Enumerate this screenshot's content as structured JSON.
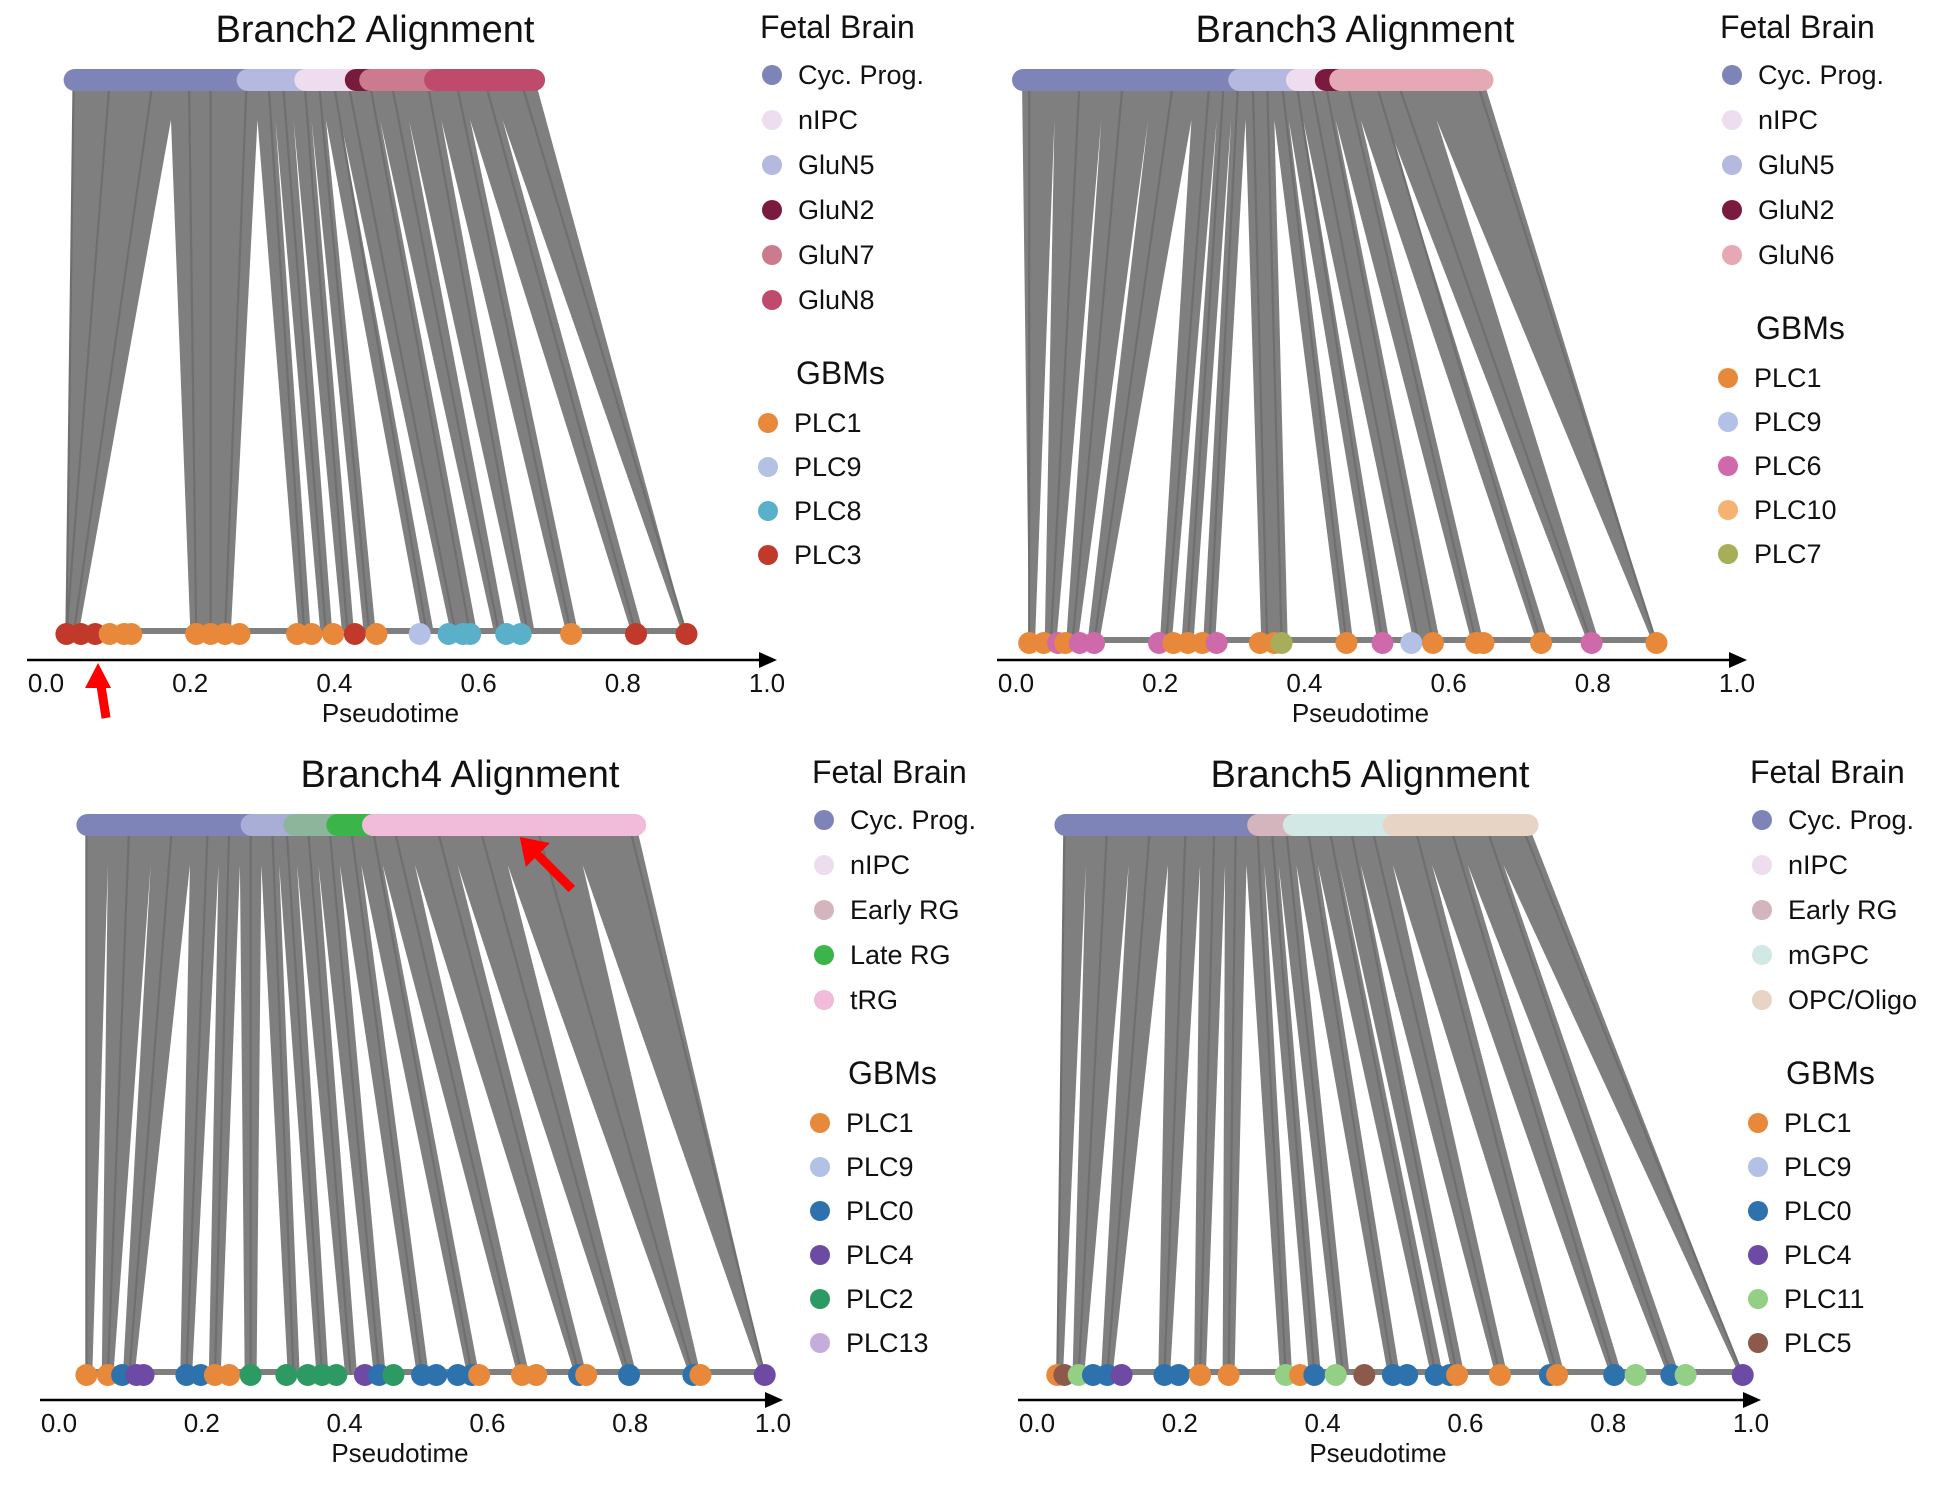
{
  "chart_data": [
    {
      "type": "scatter",
      "title": "Branch2 Alignment",
      "xlabel": "Pseudotime",
      "xlim": [
        0.0,
        1.0
      ],
      "ticks": [
        "0.0",
        "0.2",
        "0.4",
        "0.6",
        "0.8",
        "1.0"
      ],
      "legend_reference_title": "Fetal Brain",
      "legend_reference": [
        {
          "name": "Cyc. Prog.",
          "color": "#7e84b8"
        },
        {
          "name": "nIPC",
          "color": "#eedcef"
        },
        {
          "name": "GluN5",
          "color": "#b5b9e0"
        },
        {
          "name": "GluN2",
          "color": "#7a1a3c"
        },
        {
          "name": "GluN7",
          "color": "#cc7a8e"
        },
        {
          "name": "GluN8",
          "color": "#bf4a6b"
        }
      ],
      "legend_query_title": "GBMs",
      "legend_query": [
        {
          "name": "PLC1",
          "color": "#e8883a"
        },
        {
          "name": "PLC9",
          "color": "#b4c1e6"
        },
        {
          "name": "PLC8",
          "color": "#5bb0c9"
        },
        {
          "name": "PLC3",
          "color": "#c0392b"
        }
      ],
      "reference_bar": [
        {
          "from": 0.03,
          "to": 0.27,
          "color": "#7e84b8"
        },
        {
          "from": 0.27,
          "to": 0.35,
          "color": "#b5b9e0"
        },
        {
          "from": 0.35,
          "to": 0.42,
          "color": "#eedcef"
        },
        {
          "from": 0.42,
          "to": 0.44,
          "color": "#7a1a3c"
        },
        {
          "from": 0.44,
          "to": 0.53,
          "color": "#cc7a8e"
        },
        {
          "from": 0.53,
          "to": 0.67,
          "color": "#bf4a6b"
        }
      ],
      "query_points": [
        {
          "x": 0.02,
          "group": "PLC3"
        },
        {
          "x": 0.04,
          "group": "PLC3"
        },
        {
          "x": 0.06,
          "group": "PLC3"
        },
        {
          "x": 0.08,
          "group": "PLC1"
        },
        {
          "x": 0.1,
          "group": "PLC1"
        },
        {
          "x": 0.11,
          "group": "PLC1"
        },
        {
          "x": 0.2,
          "group": "PLC1"
        },
        {
          "x": 0.22,
          "group": "PLC1"
        },
        {
          "x": 0.24,
          "group": "PLC1"
        },
        {
          "x": 0.26,
          "group": "PLC1"
        },
        {
          "x": 0.34,
          "group": "PLC1"
        },
        {
          "x": 0.36,
          "group": "PLC1"
        },
        {
          "x": 0.39,
          "group": "PLC1"
        },
        {
          "x": 0.42,
          "group": "PLC3"
        },
        {
          "x": 0.45,
          "group": "PLC1"
        },
        {
          "x": 0.51,
          "group": "PLC9"
        },
        {
          "x": 0.55,
          "group": "PLC8"
        },
        {
          "x": 0.57,
          "group": "PLC8"
        },
        {
          "x": 0.58,
          "group": "PLC8"
        },
        {
          "x": 0.63,
          "group": "PLC8"
        },
        {
          "x": 0.65,
          "group": "PLC8"
        },
        {
          "x": 0.72,
          "group": "PLC1"
        },
        {
          "x": 0.81,
          "group": "PLC3"
        },
        {
          "x": 0.88,
          "group": "PLC3"
        }
      ],
      "links": [
        {
          "ref": 0.03,
          "query": 0.02
        },
        {
          "ref": 0.08,
          "query": 0.02
        },
        {
          "ref": 0.14,
          "query": 0.03
        },
        {
          "ref": 0.19,
          "query": 0.2
        },
        {
          "ref": 0.22,
          "query": 0.22
        },
        {
          "ref": 0.27,
          "query": 0.24
        },
        {
          "ref": 0.3,
          "query": 0.35
        },
        {
          "ref": 0.32,
          "query": 0.38
        },
        {
          "ref": 0.35,
          "query": 0.41
        },
        {
          "ref": 0.37,
          "query": 0.44
        },
        {
          "ref": 0.39,
          "query": 0.52
        },
        {
          "ref": 0.41,
          "query": 0.56
        },
        {
          "ref": 0.44,
          "query": 0.58
        },
        {
          "ref": 0.47,
          "query": 0.62
        },
        {
          "ref": 0.52,
          "query": 0.66
        },
        {
          "ref": 0.56,
          "query": 0.72
        },
        {
          "ref": 0.6,
          "query": 0.81
        },
        {
          "ref": 0.65,
          "query": 0.88
        }
      ],
      "annotations": [
        {
          "type": "arrow",
          "direction": "up",
          "points_to_x": 0.05,
          "color": "#ff0000"
        }
      ]
    },
    {
      "type": "scatter",
      "title": "Branch3 Alignment",
      "xlabel": "Pseudotime",
      "xlim": [
        0.0,
        1.0
      ],
      "ticks": [
        "0.0",
        "0.2",
        "0.4",
        "0.6",
        "0.8",
        "1.0"
      ],
      "legend_reference_title": "Fetal Brain",
      "legend_reference": [
        {
          "name": "Cyc. Prog.",
          "color": "#7e84b8"
        },
        {
          "name": "nIPC",
          "color": "#eedcef"
        },
        {
          "name": "GluN5",
          "color": "#b5b9e0"
        },
        {
          "name": "GluN2",
          "color": "#7a1a3c"
        },
        {
          "name": "GluN6",
          "color": "#e6a8b4"
        }
      ],
      "legend_query_title": "GBMs",
      "legend_query": [
        {
          "name": "PLC1",
          "color": "#e8883a"
        },
        {
          "name": "PLC9",
          "color": "#b4c1e6"
        },
        {
          "name": "PLC6",
          "color": "#cf6aaa"
        },
        {
          "name": "PLC10",
          "color": "#f5b372"
        },
        {
          "name": "PLC7",
          "color": "#a8ad5a"
        }
      ],
      "reference_bar": [
        {
          "from": 0.0,
          "to": 0.3,
          "color": "#7e84b8"
        },
        {
          "from": 0.3,
          "to": 0.38,
          "color": "#b5b9e0"
        },
        {
          "from": 0.38,
          "to": 0.42,
          "color": "#eedcef"
        },
        {
          "from": 0.42,
          "to": 0.44,
          "color": "#7a1a3c"
        },
        {
          "from": 0.44,
          "to": 0.64,
          "color": "#e6a8b4"
        }
      ],
      "query_points": [
        {
          "x": 0.01,
          "group": "PLC1"
        },
        {
          "x": 0.03,
          "group": "PLC1"
        },
        {
          "x": 0.05,
          "group": "PLC6"
        },
        {
          "x": 0.06,
          "group": "PLC1"
        },
        {
          "x": 0.08,
          "group": "PLC6"
        },
        {
          "x": 0.1,
          "group": "PLC6"
        },
        {
          "x": 0.19,
          "group": "PLC6"
        },
        {
          "x": 0.21,
          "group": "PLC1"
        },
        {
          "x": 0.23,
          "group": "PLC1"
        },
        {
          "x": 0.25,
          "group": "PLC1"
        },
        {
          "x": 0.27,
          "group": "PLC6"
        },
        {
          "x": 0.33,
          "group": "PLC1"
        },
        {
          "x": 0.35,
          "group": "PLC1"
        },
        {
          "x": 0.36,
          "group": "PLC7"
        },
        {
          "x": 0.45,
          "group": "PLC1"
        },
        {
          "x": 0.5,
          "group": "PLC6"
        },
        {
          "x": 0.54,
          "group": "PLC9"
        },
        {
          "x": 0.57,
          "group": "PLC1"
        },
        {
          "x": 0.63,
          "group": "PLC1"
        },
        {
          "x": 0.64,
          "group": "PLC1"
        },
        {
          "x": 0.72,
          "group": "PLC1"
        },
        {
          "x": 0.79,
          "group": "PLC6"
        },
        {
          "x": 0.88,
          "group": "PLC1"
        }
      ],
      "links": [
        {
          "ref": 0.01,
          "query": 0.01
        },
        {
          "ref": 0.08,
          "query": 0.04
        },
        {
          "ref": 0.14,
          "query": 0.07
        },
        {
          "ref": 0.21,
          "query": 0.1
        },
        {
          "ref": 0.26,
          "query": 0.2
        },
        {
          "ref": 0.28,
          "query": 0.23
        },
        {
          "ref": 0.3,
          "query": 0.26
        },
        {
          "ref": 0.32,
          "query": 0.34
        },
        {
          "ref": 0.34,
          "query": 0.36
        },
        {
          "ref": 0.36,
          "query": 0.45
        },
        {
          "ref": 0.38,
          "query": 0.5
        },
        {
          "ref": 0.4,
          "query": 0.55
        },
        {
          "ref": 0.42,
          "query": 0.57
        },
        {
          "ref": 0.45,
          "query": 0.63
        },
        {
          "ref": 0.49,
          "query": 0.72
        },
        {
          "ref": 0.52,
          "query": 0.79
        },
        {
          "ref": 0.63,
          "query": 0.88
        }
      ],
      "annotations": []
    },
    {
      "type": "scatter",
      "title": "Branch4 Alignment",
      "xlabel": "Pseudotime",
      "xlim": [
        0.0,
        1.0
      ],
      "ticks": [
        "0.0",
        "0.2",
        "0.4",
        "0.6",
        "0.8",
        "1.0"
      ],
      "legend_reference_title": "Fetal Brain",
      "legend_reference": [
        {
          "name": "Cyc. Prog.",
          "color": "#7e84b8"
        },
        {
          "name": "nIPC",
          "color": "#eedcef"
        },
        {
          "name": "Early RG",
          "color": "#d4b5bd"
        },
        {
          "name": "Late RG",
          "color": "#3bb54a"
        },
        {
          "name": "tRG",
          "color": "#f0bcd9"
        }
      ],
      "legend_query_title": "GBMs",
      "legend_query": [
        {
          "name": "PLC1",
          "color": "#e8883a"
        },
        {
          "name": "PLC9",
          "color": "#b4c1e6"
        },
        {
          "name": "PLC0",
          "color": "#2d72ad"
        },
        {
          "name": "PLC4",
          "color": "#6d4aa4"
        },
        {
          "name": "PLC2",
          "color": "#2e9a63"
        },
        {
          "name": "PLC13",
          "color": "#c4addb"
        }
      ],
      "reference_bar": [
        {
          "from": 0.03,
          "to": 0.26,
          "color": "#7e84b8"
        },
        {
          "from": 0.26,
          "to": 0.32,
          "color": "#a8aed6"
        },
        {
          "from": 0.32,
          "to": 0.38,
          "color": "#8db59b"
        },
        {
          "from": 0.38,
          "to": 0.43,
          "color": "#3bb54a"
        },
        {
          "from": 0.43,
          "to": 0.8,
          "color": "#f0bcd9"
        }
      ],
      "query_points": [
        {
          "x": 0.03,
          "group": "PLC1"
        },
        {
          "x": 0.06,
          "group": "PLC1"
        },
        {
          "x": 0.08,
          "group": "PLC0"
        },
        {
          "x": 0.1,
          "group": "PLC4"
        },
        {
          "x": 0.11,
          "group": "PLC4"
        },
        {
          "x": 0.17,
          "group": "PLC0"
        },
        {
          "x": 0.19,
          "group": "PLC0"
        },
        {
          "x": 0.21,
          "group": "PLC1"
        },
        {
          "x": 0.23,
          "group": "PLC1"
        },
        {
          "x": 0.26,
          "group": "PLC2"
        },
        {
          "x": 0.31,
          "group": "PLC2"
        },
        {
          "x": 0.34,
          "group": "PLC2"
        },
        {
          "x": 0.36,
          "group": "PLC2"
        },
        {
          "x": 0.38,
          "group": "PLC2"
        },
        {
          "x": 0.42,
          "group": "PLC4"
        },
        {
          "x": 0.44,
          "group": "PLC0"
        },
        {
          "x": 0.46,
          "group": "PLC2"
        },
        {
          "x": 0.5,
          "group": "PLC0"
        },
        {
          "x": 0.52,
          "group": "PLC0"
        },
        {
          "x": 0.55,
          "group": "PLC0"
        },
        {
          "x": 0.57,
          "group": "PLC0"
        },
        {
          "x": 0.58,
          "group": "PLC1"
        },
        {
          "x": 0.64,
          "group": "PLC1"
        },
        {
          "x": 0.66,
          "group": "PLC1"
        },
        {
          "x": 0.72,
          "group": "PLC0"
        },
        {
          "x": 0.73,
          "group": "PLC1"
        },
        {
          "x": 0.79,
          "group": "PLC0"
        },
        {
          "x": 0.88,
          "group": "PLC0"
        },
        {
          "x": 0.89,
          "group": "PLC1"
        },
        {
          "x": 0.98,
          "group": "PLC4"
        }
      ],
      "links": [
        {
          "ref": 0.03,
          "query": 0.03
        },
        {
          "ref": 0.09,
          "query": 0.06
        },
        {
          "ref": 0.15,
          "query": 0.09
        },
        {
          "ref": 0.2,
          "query": 0.17
        },
        {
          "ref": 0.23,
          "query": 0.21
        },
        {
          "ref": 0.26,
          "query": 0.26
        },
        {
          "ref": 0.29,
          "query": 0.32
        },
        {
          "ref": 0.31,
          "query": 0.36
        },
        {
          "ref": 0.34,
          "query": 0.4
        },
        {
          "ref": 0.37,
          "query": 0.44
        },
        {
          "ref": 0.4,
          "query": 0.5
        },
        {
          "ref": 0.43,
          "query": 0.57
        },
        {
          "ref": 0.46,
          "query": 0.64
        },
        {
          "ref": 0.52,
          "query": 0.72
        },
        {
          "ref": 0.58,
          "query": 0.79
        },
        {
          "ref": 0.66,
          "query": 0.88
        },
        {
          "ref": 0.79,
          "query": 0.98
        }
      ],
      "annotations": [
        {
          "type": "arrow",
          "direction": "up-left",
          "points_to_x": 0.63,
          "color": "#ff0000"
        }
      ]
    },
    {
      "type": "scatter",
      "title": "Branch5 Alignment",
      "xlabel": "Pseudotime",
      "xlim": [
        0.0,
        1.0
      ],
      "ticks": [
        "0.0",
        "0.2",
        "0.4",
        "0.6",
        "0.8",
        "1.0"
      ],
      "legend_reference_title": "Fetal Brain",
      "legend_reference": [
        {
          "name": "Cyc. Prog.",
          "color": "#7e84b8"
        },
        {
          "name": "nIPC",
          "color": "#eedcef"
        },
        {
          "name": "Early RG",
          "color": "#d4b5bd"
        },
        {
          "name": "mGPC",
          "color": "#d2e8e4"
        },
        {
          "name": "OPC/Oligo",
          "color": "#e8d4c4"
        }
      ],
      "legend_query_title": "GBMs",
      "legend_query": [
        {
          "name": "PLC1",
          "color": "#e8883a"
        },
        {
          "name": "PLC9",
          "color": "#b4c1e6"
        },
        {
          "name": "PLC0",
          "color": "#2d72ad"
        },
        {
          "name": "PLC4",
          "color": "#6d4aa4"
        },
        {
          "name": "PLC11",
          "color": "#93cf85"
        },
        {
          "name": "PLC5",
          "color": "#8b5a4a"
        }
      ],
      "reference_bar": [
        {
          "from": 0.03,
          "to": 0.3,
          "color": "#7e84b8"
        },
        {
          "from": 0.3,
          "to": 0.35,
          "color": "#d4b5bd"
        },
        {
          "from": 0.35,
          "to": 0.49,
          "color": "#d2e8e4"
        },
        {
          "from": 0.49,
          "to": 0.68,
          "color": "#e8d4c4"
        }
      ],
      "query_points": [
        {
          "x": 0.02,
          "group": "PLC1"
        },
        {
          "x": 0.03,
          "group": "PLC5"
        },
        {
          "x": 0.05,
          "group": "PLC11"
        },
        {
          "x": 0.07,
          "group": "PLC0"
        },
        {
          "x": 0.09,
          "group": "PLC0"
        },
        {
          "x": 0.11,
          "group": "PLC4"
        },
        {
          "x": 0.17,
          "group": "PLC0"
        },
        {
          "x": 0.19,
          "group": "PLC0"
        },
        {
          "x": 0.22,
          "group": "PLC1"
        },
        {
          "x": 0.26,
          "group": "PLC1"
        },
        {
          "x": 0.34,
          "group": "PLC11"
        },
        {
          "x": 0.36,
          "group": "PLC1"
        },
        {
          "x": 0.38,
          "group": "PLC0"
        },
        {
          "x": 0.41,
          "group": "PLC11"
        },
        {
          "x": 0.45,
          "group": "PLC5"
        },
        {
          "x": 0.49,
          "group": "PLC0"
        },
        {
          "x": 0.51,
          "group": "PLC0"
        },
        {
          "x": 0.55,
          "group": "PLC0"
        },
        {
          "x": 0.57,
          "group": "PLC0"
        },
        {
          "x": 0.58,
          "group": "PLC1"
        },
        {
          "x": 0.64,
          "group": "PLC1"
        },
        {
          "x": 0.71,
          "group": "PLC0"
        },
        {
          "x": 0.72,
          "group": "PLC1"
        },
        {
          "x": 0.8,
          "group": "PLC0"
        },
        {
          "x": 0.83,
          "group": "PLC11"
        },
        {
          "x": 0.88,
          "group": "PLC0"
        },
        {
          "x": 0.9,
          "group": "PLC11"
        },
        {
          "x": 0.98,
          "group": "PLC4"
        }
      ],
      "links": [
        {
          "ref": 0.03,
          "query": 0.02
        },
        {
          "ref": 0.09,
          "query": 0.05
        },
        {
          "ref": 0.15,
          "query": 0.09
        },
        {
          "ref": 0.2,
          "query": 0.17
        },
        {
          "ref": 0.24,
          "query": 0.22
        },
        {
          "ref": 0.27,
          "query": 0.26
        },
        {
          "ref": 0.3,
          "query": 0.34
        },
        {
          "ref": 0.32,
          "query": 0.38
        },
        {
          "ref": 0.34,
          "query": 0.42
        },
        {
          "ref": 0.37,
          "query": 0.49
        },
        {
          "ref": 0.4,
          "query": 0.55
        },
        {
          "ref": 0.43,
          "query": 0.58
        },
        {
          "ref": 0.46,
          "query": 0.64
        },
        {
          "ref": 0.52,
          "query": 0.72
        },
        {
          "ref": 0.57,
          "query": 0.8
        },
        {
          "ref": 0.62,
          "query": 0.88
        },
        {
          "ref": 0.67,
          "query": 0.98
        }
      ],
      "annotations": []
    }
  ]
}
